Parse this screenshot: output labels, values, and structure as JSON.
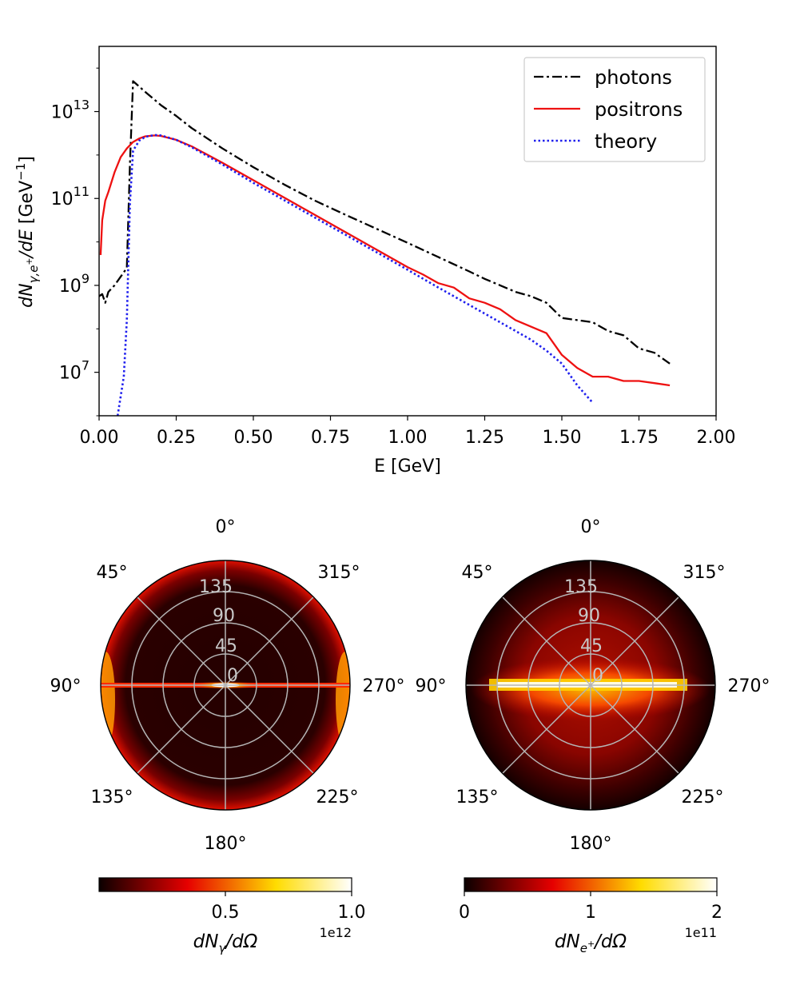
{
  "chart_data": [
    {
      "type": "line",
      "title": "",
      "xlabel": "E [GeV]",
      "ylabel": "dN_{γ,e⁺}/dE [GeV⁻¹]",
      "xlim": [
        0,
        2
      ],
      "ylim_log10": [
        6.0,
        14.5
      ],
      "yscale": "log",
      "x_ticks": [
        0.0,
        0.25,
        0.5,
        0.75,
        1.0,
        1.25,
        1.5,
        1.75,
        2.0
      ],
      "x_tick_labels": [
        "0.00",
        "0.25",
        "0.50",
        "0.75",
        "1.00",
        "1.25",
        "1.50",
        "1.75",
        "2.00"
      ],
      "y_ticks_log10": [
        7,
        9,
        11,
        13
      ],
      "y_tick_labels": [
        {
          "base": "10",
          "exp": "7"
        },
        {
          "base": "10",
          "exp": "9"
        },
        {
          "base": "10",
          "exp": "11"
        },
        {
          "base": "10",
          "exp": "13"
        }
      ],
      "legend": {
        "position": "top-right",
        "entries": [
          "photons",
          "positrons",
          "theory"
        ]
      },
      "series": [
        {
          "name": "photons",
          "color": "#000000",
          "style": "dashdot",
          "x": [
            0.0,
            0.01,
            0.02,
            0.03,
            0.05,
            0.07,
            0.09,
            0.1,
            0.11,
            0.15,
            0.2,
            0.25,
            0.3,
            0.4,
            0.5,
            0.6,
            0.7,
            0.8,
            0.9,
            1.0,
            1.1,
            1.2,
            1.25,
            1.3,
            1.35,
            1.4,
            1.45,
            1.5,
            1.55,
            1.6,
            1.65,
            1.7,
            1.75,
            1.8,
            1.85
          ],
          "log10_y": [
            8.75,
            8.8,
            8.6,
            8.85,
            9.0,
            9.2,
            9.4,
            11.8,
            13.7,
            13.45,
            13.15,
            12.9,
            12.62,
            12.15,
            11.72,
            11.32,
            10.95,
            10.62,
            10.3,
            9.98,
            9.65,
            9.32,
            9.15,
            9.0,
            8.85,
            8.75,
            8.6,
            8.25,
            8.2,
            8.15,
            7.95,
            7.85,
            7.55,
            7.45,
            7.2
          ]
        },
        {
          "name": "positrons",
          "color": "#ee1111",
          "style": "solid",
          "x": [
            0.005,
            0.01,
            0.02,
            0.03,
            0.05,
            0.07,
            0.09,
            0.11,
            0.13,
            0.15,
            0.18,
            0.2,
            0.25,
            0.3,
            0.4,
            0.5,
            0.6,
            0.7,
            0.8,
            0.9,
            1.0,
            1.05,
            1.1,
            1.15,
            1.2,
            1.25,
            1.3,
            1.35,
            1.4,
            1.45,
            1.5,
            1.55,
            1.6,
            1.65,
            1.7,
            1.75,
            1.8,
            1.85
          ],
          "log10_y": [
            9.7,
            10.5,
            10.95,
            11.15,
            11.6,
            11.95,
            12.15,
            12.3,
            12.38,
            12.43,
            12.45,
            12.44,
            12.35,
            12.2,
            11.82,
            11.42,
            11.02,
            10.62,
            10.22,
            9.82,
            9.42,
            9.25,
            9.05,
            8.95,
            8.7,
            8.6,
            8.45,
            8.2,
            8.05,
            7.9,
            7.4,
            7.1,
            6.9,
            6.9,
            6.8,
            6.8,
            6.75,
            6.7
          ]
        },
        {
          "name": "theory",
          "color": "#1f1fee",
          "style": "dotted",
          "x": [
            0.06,
            0.08,
            0.09,
            0.1,
            0.11,
            0.13,
            0.15,
            0.18,
            0.2,
            0.25,
            0.3,
            0.4,
            0.5,
            0.6,
            0.7,
            0.8,
            0.9,
            1.0,
            1.1,
            1.2,
            1.3,
            1.4,
            1.45,
            1.5,
            1.55,
            1.6
          ],
          "log10_y": [
            6.0,
            6.9,
            8.2,
            10.9,
            12.1,
            12.33,
            12.42,
            12.46,
            12.45,
            12.35,
            12.18,
            11.78,
            11.36,
            10.96,
            10.56,
            10.16,
            9.76,
            9.36,
            8.95,
            8.55,
            8.15,
            7.75,
            7.5,
            7.2,
            6.7,
            6.3
          ]
        }
      ]
    },
    {
      "type": "heatmap",
      "subtype": "polar",
      "quantity": "photons",
      "theta_labels": [
        "0°",
        "45°",
        "90°",
        "135°",
        "180°",
        "225°",
        "270°",
        "315°"
      ],
      "radial_labels": [
        "0",
        "45",
        "90",
        "135"
      ],
      "colormap": "hot",
      "colorbar": {
        "label": "dN_γ/dΩ",
        "exponent": "1e12",
        "ticks": [
          0.5,
          1.0
        ],
        "tick_labels": [
          "0.5",
          "1.0"
        ],
        "range": [
          0.0,
          1.0
        ]
      }
    },
    {
      "type": "heatmap",
      "subtype": "polar",
      "quantity": "positrons",
      "theta_labels": [
        "0°",
        "45°",
        "90°",
        "135°",
        "180°",
        "225°",
        "270°",
        "315°"
      ],
      "radial_labels": [
        "0",
        "45",
        "90",
        "135"
      ],
      "colormap": "hot",
      "colorbar": {
        "label": "dN_e⁺/dΩ",
        "exponent": "1e11",
        "ticks": [
          0,
          1,
          2
        ],
        "tick_labels": [
          "0",
          "1",
          "2"
        ],
        "range": [
          0,
          2
        ]
      }
    }
  ]
}
